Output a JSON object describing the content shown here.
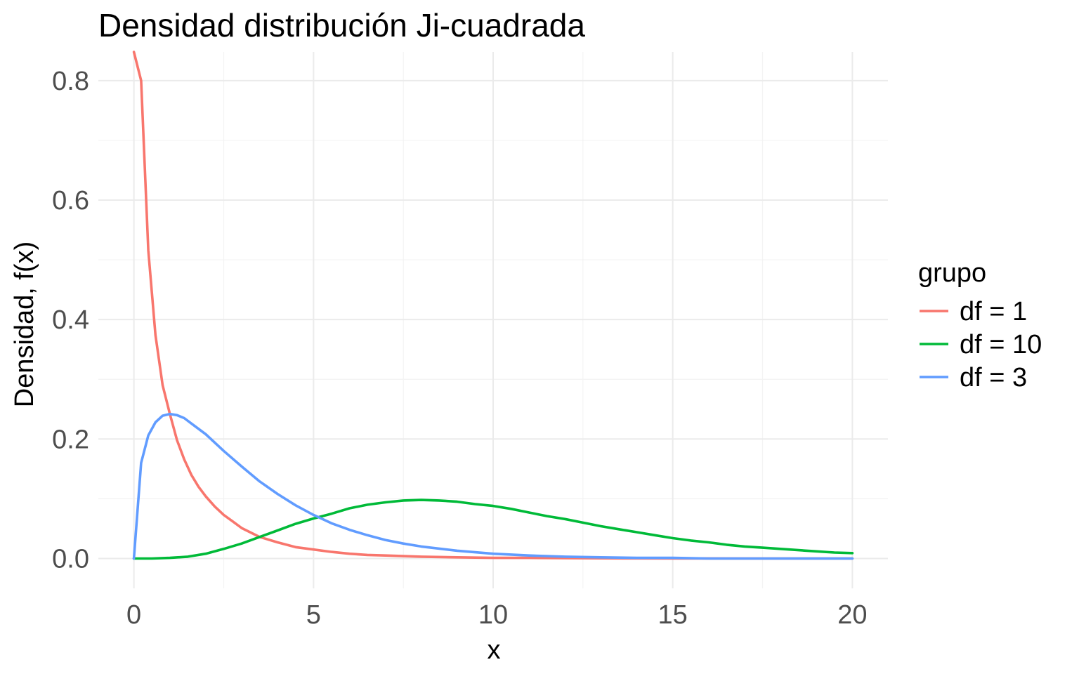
{
  "chart_data": {
    "type": "line",
    "title": "Densidad distribución Ji-cuadrada",
    "xlabel": "x",
    "ylabel": "Densidad, f(x)",
    "xlim": [
      -0.99,
      20.99
    ],
    "ylim": [
      -0.05,
      0.848
    ],
    "x_ticks": [
      0,
      5,
      10,
      15,
      20
    ],
    "x_tick_labels": [
      "0",
      "5",
      "10",
      "15",
      "20"
    ],
    "y_ticks": [
      0.0,
      0.2,
      0.4,
      0.6,
      0.8
    ],
    "y_tick_labels": [
      "0.0",
      "0.2",
      "0.4",
      "0.6",
      "0.8"
    ],
    "x_minor_ticks": [
      2.5,
      7.5,
      12.5,
      17.5
    ],
    "y_minor_ticks": [
      0.1,
      0.3,
      0.5,
      0.7
    ],
    "grid": true,
    "legend": {
      "title": "grupo",
      "position": "right"
    },
    "series": [
      {
        "name": "df = 1",
        "color": "#F8766D",
        "x": [
          0,
          0.2,
          0.4,
          0.6,
          0.8,
          1.0,
          1.2,
          1.4,
          1.6,
          1.8,
          2.0,
          2.25,
          2.5,
          2.75,
          3.0,
          3.5,
          4.0,
          4.5,
          5.0,
          5.5,
          6.0,
          6.5,
          7.0,
          8.0,
          9.0,
          10.0,
          11.0,
          12.0,
          13.0,
          14.0,
          15.0,
          16.0,
          17.0,
          18.0,
          19.0,
          20.0
        ],
        "y": [
          0.848,
          0.8,
          0.516,
          0.374,
          0.29,
          0.242,
          0.198,
          0.166,
          0.14,
          0.12,
          0.104,
          0.087,
          0.073,
          0.062,
          0.051,
          0.036,
          0.027,
          0.019,
          0.015,
          0.011,
          0.008,
          0.006,
          0.005,
          0.003,
          0.002,
          0.001,
          0.001,
          0.0005,
          0.0003,
          0.0002,
          0.0001,
          0.0001,
          0.0,
          0.0,
          0.0,
          0.0
        ]
      },
      {
        "name": "df = 10",
        "color": "#00BA38",
        "x": [
          0,
          0.5,
          1.0,
          1.5,
          2.0,
          2.5,
          3.0,
          3.5,
          4.0,
          4.5,
          5.0,
          5.5,
          6.0,
          6.5,
          7.0,
          7.5,
          8.0,
          8.5,
          9.0,
          9.5,
          10.0,
          10.5,
          11.0,
          11.5,
          12.0,
          12.5,
          13.0,
          13.5,
          14.0,
          14.5,
          15.0,
          15.5,
          16.0,
          16.5,
          17.0,
          17.5,
          18.0,
          18.5,
          19.0,
          19.5,
          20.0
        ],
        "y": [
          0.0,
          0.0,
          0.001,
          0.003,
          0.008,
          0.016,
          0.025,
          0.036,
          0.047,
          0.058,
          0.067,
          0.075,
          0.084,
          0.09,
          0.094,
          0.097,
          0.098,
          0.097,
          0.095,
          0.091,
          0.088,
          0.083,
          0.077,
          0.071,
          0.066,
          0.06,
          0.054,
          0.049,
          0.044,
          0.039,
          0.034,
          0.03,
          0.027,
          0.023,
          0.02,
          0.018,
          0.016,
          0.014,
          0.012,
          0.01,
          0.009
        ]
      },
      {
        "name": "df = 3",
        "color": "#619CFF",
        "x": [
          0,
          0.2,
          0.4,
          0.6,
          0.8,
          1.0,
          1.2,
          1.4,
          1.6,
          2.0,
          2.5,
          3.0,
          3.5,
          4.0,
          4.5,
          5.0,
          5.5,
          6.0,
          6.5,
          7.0,
          7.5,
          8.0,
          9.0,
          10.0,
          11.0,
          12.0,
          13.0,
          14.0,
          15.0,
          16.0,
          17.0,
          18.0,
          19.0,
          20.0
        ],
        "y": [
          0.0,
          0.16,
          0.206,
          0.228,
          0.239,
          0.242,
          0.24,
          0.235,
          0.226,
          0.208,
          0.18,
          0.154,
          0.129,
          0.108,
          0.089,
          0.073,
          0.059,
          0.048,
          0.039,
          0.031,
          0.025,
          0.02,
          0.013,
          0.008,
          0.005,
          0.003,
          0.002,
          0.001,
          0.001,
          0.0,
          0.0,
          0.0,
          0.0,
          0.0
        ]
      }
    ]
  }
}
